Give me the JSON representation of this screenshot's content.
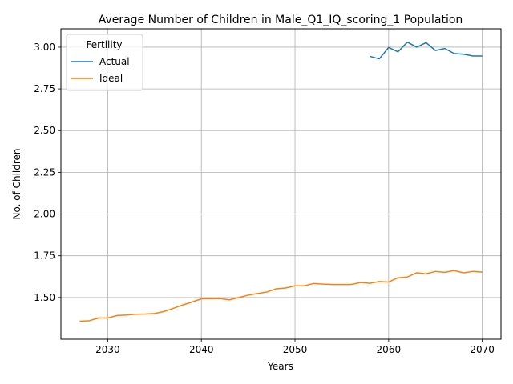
{
  "chart_data": {
    "type": "line",
    "title": "Average Number of Children in Male_Q1_IQ_scoring_1 Population",
    "xlabel": "Years",
    "ylabel": "No. of Children",
    "xlim": [
      2025,
      2072
    ],
    "ylim": [
      1.25,
      3.11
    ],
    "xticks": [
      2030,
      2040,
      2050,
      2060,
      2070
    ],
    "xtick_labels": [
      "2030",
      "2040",
      "2050",
      "2060",
      "2070"
    ],
    "yticks": [
      1.5,
      1.75,
      2.0,
      2.25,
      2.5,
      2.75,
      3.0
    ],
    "ytick_labels": [
      "1.50",
      "1.75",
      "2.00",
      "2.25",
      "2.50",
      "2.75",
      "3.00"
    ],
    "grid": true,
    "legend": {
      "title": "Fertility",
      "placement": "top-left"
    },
    "series": [
      {
        "name": "Actual",
        "color": "#1f77b4",
        "x": [
          2058,
          2059,
          2060,
          2061,
          2062,
          2063,
          2064,
          2065,
          2066,
          2067,
          2068,
          2069,
          2070
        ],
        "y": [
          2.945,
          2.93,
          2.998,
          2.972,
          3.03,
          3.0,
          3.027,
          2.98,
          2.992,
          2.962,
          2.958,
          2.947,
          2.947
        ]
      },
      {
        "name": "Ideal",
        "color": "#ff7f0e",
        "x": [
          2027,
          2028,
          2029,
          2030,
          2031,
          2032,
          2033,
          2034,
          2035,
          2036,
          2037,
          2038,
          2039,
          2040,
          2041,
          2042,
          2043,
          2044,
          2045,
          2046,
          2047,
          2048,
          2049,
          2050,
          2051,
          2052,
          2053,
          2054,
          2055,
          2056,
          2057,
          2058,
          2059,
          2060,
          2061,
          2062,
          2063,
          2064,
          2065,
          2066,
          2067,
          2068,
          2069,
          2070
        ],
        "y": [
          1.358,
          1.36,
          1.377,
          1.377,
          1.392,
          1.395,
          1.4,
          1.401,
          1.404,
          1.416,
          1.435,
          1.455,
          1.473,
          1.492,
          1.492,
          1.493,
          1.486,
          1.5,
          1.514,
          1.524,
          1.533,
          1.552,
          1.557,
          1.57,
          1.57,
          1.584,
          1.58,
          1.578,
          1.578,
          1.578,
          1.59,
          1.585,
          1.596,
          1.593,
          1.618,
          1.623,
          1.648,
          1.642,
          1.656,
          1.651,
          1.661,
          1.648,
          1.656,
          1.652
        ]
      }
    ]
  }
}
